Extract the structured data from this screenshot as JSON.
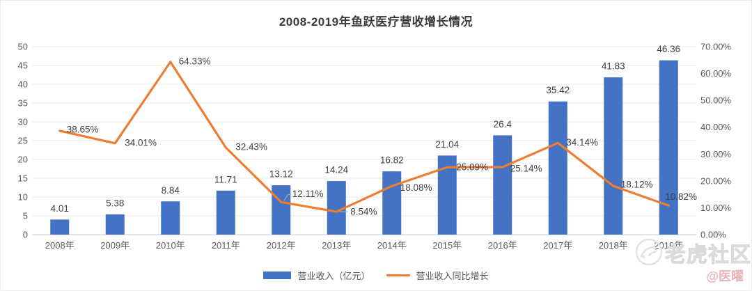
{
  "title": "2008-2019年鱼跃医疗营收增长情况",
  "legend": {
    "bar_label": "营业收入（亿元）",
    "line_label": "营业收入同比增长"
  },
  "watermark": {
    "community": "老虎社区",
    "author": "@医曜"
  },
  "colors": {
    "bar": "#4472C4",
    "line": "#ED7D31",
    "gridline": "#e8e8e8",
    "axis_line": "#c9c9c9",
    "tick_text": "#595959",
    "label_text": "#404040"
  },
  "chart_data": {
    "type": "bar",
    "subtype": "combo-bar-line",
    "title": "2008-2019年鱼跃医疗营收增长情况",
    "categories": [
      "2008年",
      "2009年",
      "2010年",
      "2011年",
      "2012年",
      "2013年",
      "2014年",
      "2015年",
      "2016年",
      "2017年",
      "2018年",
      "2019年"
    ],
    "series": [
      {
        "name": "营业收入（亿元）",
        "type": "bar",
        "axis": "left",
        "color": "#4472C4",
        "values": [
          4.01,
          5.38,
          8.84,
          11.71,
          13.12,
          14.24,
          16.82,
          21.04,
          26.4,
          35.42,
          41.83,
          46.36
        ],
        "labels": [
          "4.01",
          "5.38",
          "8.84",
          "11.71",
          "13.12",
          "14.24",
          "16.82",
          "21.04",
          "26.4",
          "35.42",
          "41.83",
          "46.36"
        ]
      },
      {
        "name": "营业收入同比增长",
        "type": "line",
        "axis": "right",
        "color": "#ED7D31",
        "values": [
          38.65,
          34.01,
          64.33,
          32.43,
          12.11,
          8.54,
          18.08,
          25.09,
          25.14,
          34.14,
          18.12,
          10.82
        ],
        "labels": [
          "38.65%",
          "34.01%",
          "64.33%",
          "32.43%",
          "12.11%",
          "8.54%",
          "18.08%",
          "25.09%",
          "25.14%",
          "34.14%",
          "18.12%",
          "10.82%"
        ]
      }
    ],
    "left_axis": {
      "min": 0,
      "max": 50,
      "step": 5,
      "ticks": [
        "0",
        "5",
        "10",
        "15",
        "20",
        "25",
        "30",
        "35",
        "40",
        "45",
        "50"
      ]
    },
    "right_axis": {
      "min": 0,
      "max": 70,
      "step": 10,
      "ticks": [
        "0.00%",
        "10.00%",
        "20.00%",
        "30.00%",
        "40.00%",
        "50.00%",
        "60.00%",
        "70.00%"
      ]
    },
    "grid": true,
    "legend_position": "bottom"
  }
}
